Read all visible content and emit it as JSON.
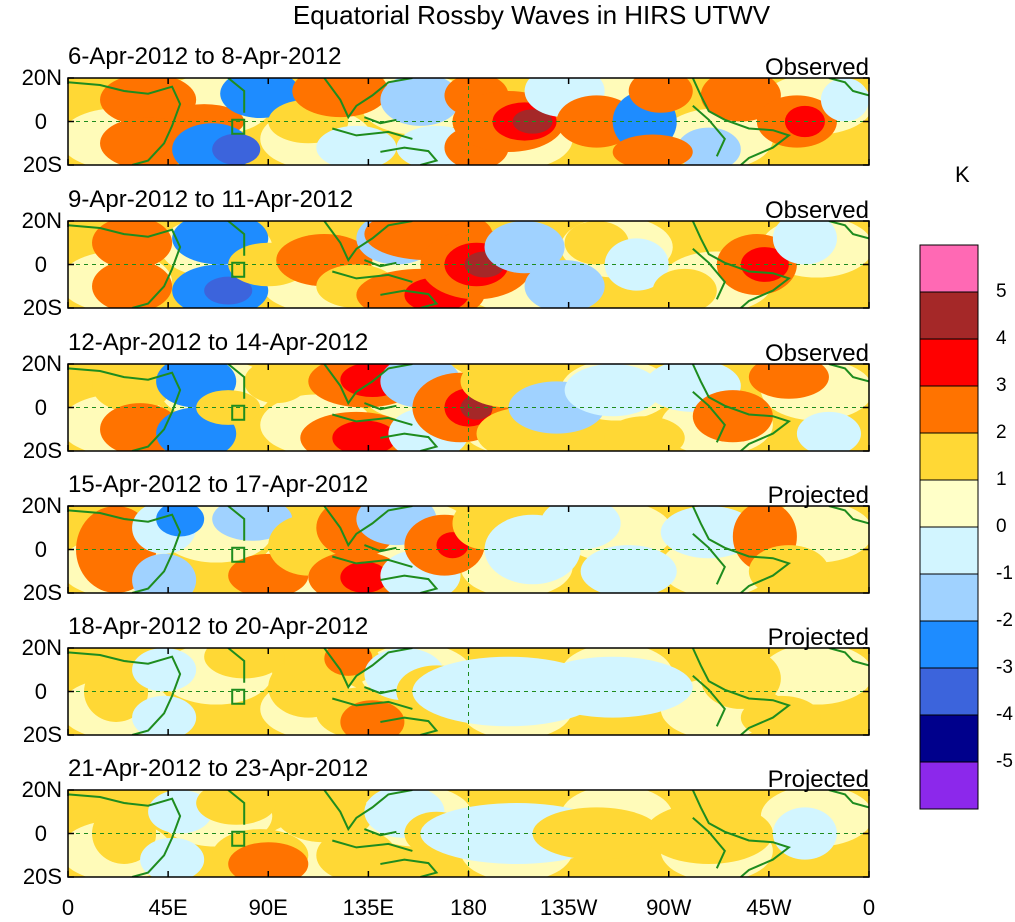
{
  "chart_data": {
    "type": "heatmap",
    "title": "Equatorial Rossby Waves in HIRS UTWV",
    "units": "K",
    "x_ticks": [
      "0",
      "45E",
      "90E",
      "135E",
      "180",
      "135W",
      "90W",
      "45W",
      "0"
    ],
    "y_ticks": [
      "20N",
      "0",
      "20S"
    ],
    "colorbar": {
      "levels": [
        "5",
        "4",
        "3",
        "2",
        "1",
        "0",
        "-1",
        "-2",
        "-3",
        "-4",
        "-5"
      ],
      "colors": [
        "#ff69b4",
        "#a52828",
        "#ff0000",
        "#ff7300",
        "#ffd835",
        "#ffffc8",
        "#d2f5ff",
        "#a0d2ff",
        "#1e8cff",
        "#3c64dc",
        "#00008c",
        "#8c28eb"
      ]
    },
    "panels": [
      {
        "date_range": "6-Apr-2012 to 8-Apr-2012",
        "kind": "Observed"
      },
      {
        "date_range": "9-Apr-2012 to 11-Apr-2012",
        "kind": "Observed"
      },
      {
        "date_range": "12-Apr-2012 to 14-Apr-2012",
        "kind": "Observed"
      },
      {
        "date_range": "15-Apr-2012 to 17-Apr-2012",
        "kind": "Projected"
      },
      {
        "date_range": "18-Apr-2012 to 20-Apr-2012",
        "kind": "Projected"
      },
      {
        "date_range": "21-Apr-2012 to 23-Apr-2012",
        "kind": "Projected"
      }
    ]
  }
}
